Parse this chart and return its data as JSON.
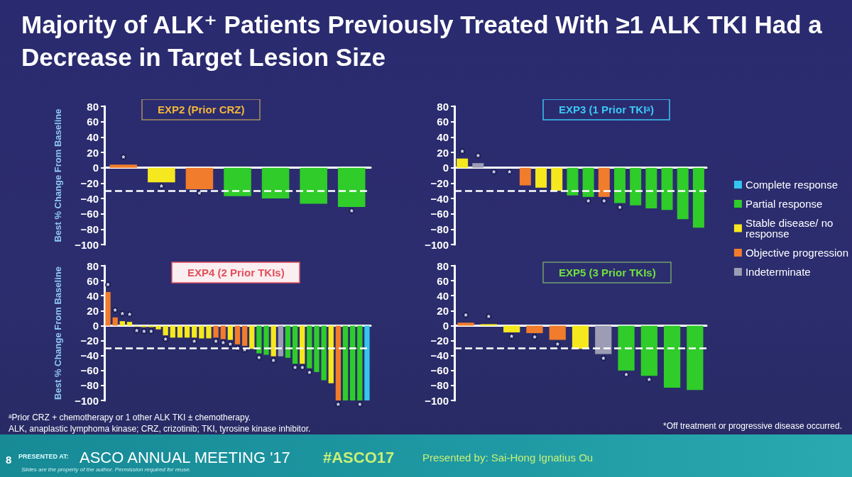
{
  "chart_data": [
    {
      "type": "bar",
      "title": "Majority of ALK⁺ Patients Previously Treated With ≥1 ALK TKI Had a Decrease in Target Lesion Size",
      "subtitle": "EXP2 (Prior CRZ)",
      "ylabel": "Best % Change From Baseline",
      "categories": [
        null,
        null,
        null,
        null,
        null,
        null,
        null
      ],
      "series": [
        {
          "color": "#2fcc2a",
          "values": [
            null,
            null,
            null,
            -37,
            -40,
            -47,
            -51
          ],
          "value_labels": [
            null,
            null,
            null,
            null,
            null,
            null,
            "*"
          ]
        },
        {
          "color": "#f5e81e",
          "values": [
            null,
            -19,
            null,
            null,
            null,
            null,
            null
          ],
          "value_labels": [
            null,
            "*",
            null,
            null,
            null,
            null,
            null
          ]
        },
        {
          "color": "#f07c2c",
          "values": [
            4,
            null,
            -28,
            null,
            null,
            null,
            null
          ],
          "value_labels": [
            "*",
            null,
            "*",
            null,
            null,
            null,
            null
          ]
        }
      ],
      "ylim": [
        -100,
        80
      ],
      "yticks": [
        -100,
        -80,
        -60,
        -40,
        -20,
        0,
        20,
        40,
        60,
        80
      ],
      "tick_labels": "y",
      "ref_lines": [
        {
          "axis": "y",
          "value": -30,
          "color": "#ffffff",
          "line_style": "dashed"
        }
      ]
    },
    {
      "type": "bar",
      "subtitle": "EXP3 (1 Prior TKIᵃ)",
      "categories": [
        null,
        null,
        null,
        null,
        null,
        null,
        null,
        null,
        null,
        null,
        null,
        null,
        null,
        null,
        null,
        null
      ],
      "series": [
        {
          "name": "Complete response",
          "color": "#35c5f0",
          "values": [
            null,
            null,
            null,
            null,
            null,
            null,
            null,
            null,
            null,
            null,
            null,
            null,
            null,
            null,
            null,
            null
          ]
        },
        {
          "name": "Partial response",
          "color": "#2fcc2a",
          "values": [
            null,
            null,
            null,
            null,
            null,
            null,
            null,
            -36,
            -38,
            null,
            -46,
            -49,
            -53,
            -55,
            -67,
            -78
          ],
          "value_labels": [
            null,
            null,
            null,
            null,
            null,
            null,
            null,
            null,
            "*",
            null,
            "*",
            null,
            null,
            null,
            null,
            null
          ]
        },
        {
          "name": "Stable disease/ no response",
          "color": "#f5e81e",
          "values": [
            12,
            null,
            0,
            0,
            null,
            -26,
            -30,
            null,
            null,
            null,
            null,
            null,
            null,
            null,
            null,
            null
          ],
          "value_labels": [
            "*",
            null,
            "*",
            "*",
            null,
            null,
            null,
            null,
            null,
            null,
            null,
            null,
            null,
            null,
            null,
            null
          ]
        },
        {
          "name": "Objective progression",
          "color": "#f07c2c",
          "values": [
            null,
            null,
            null,
            null,
            -23,
            null,
            null,
            null,
            null,
            -38,
            null,
            null,
            null,
            null,
            null,
            null
          ],
          "value_labels": [
            null,
            null,
            null,
            null,
            null,
            null,
            null,
            null,
            null,
            "*",
            null,
            null,
            null,
            null,
            null,
            null
          ]
        },
        {
          "name": "Indeterminate",
          "color": "#9c9cb4",
          "values": [
            null,
            6,
            null,
            null,
            null,
            null,
            null,
            null,
            null,
            null,
            null,
            null,
            null,
            null,
            null,
            null
          ],
          "value_labels": [
            null,
            "*",
            null,
            null,
            null,
            null,
            null,
            null,
            null,
            null,
            null,
            null,
            null,
            null,
            null,
            null
          ]
        }
      ],
      "ylim": [
        -100,
        80
      ],
      "yticks": [
        -100,
        -80,
        -60,
        -40,
        -20,
        0,
        20,
        40,
        60,
        80
      ],
      "tick_labels": "y",
      "legend": "right",
      "ref_lines": [
        {
          "axis": "y",
          "value": -30,
          "color": "#ffffff",
          "line_style": "dashed"
        }
      ]
    },
    {
      "type": "bar",
      "subtitle": "EXP4 (2 Prior TKIs)",
      "ylabel": "Best % Change From Baseline",
      "categories": [
        null,
        null,
        null,
        null,
        null,
        null,
        null,
        null,
        null,
        null,
        null,
        null,
        null,
        null,
        null,
        null,
        null,
        null,
        null,
        null,
        null,
        null,
        null,
        null,
        null,
        null,
        null,
        null,
        null,
        null,
        null,
        null,
        null,
        null,
        null,
        null,
        null
      ],
      "series": [
        {
          "color": "#f07c2c",
          "values": [
            45,
            11,
            null,
            null,
            null,
            null,
            null,
            null,
            null,
            null,
            null,
            null,
            null,
            null,
            null,
            -16,
            -18,
            null,
            -25,
            -27,
            null,
            null,
            null,
            null,
            null,
            null,
            null,
            null,
            null,
            null,
            null,
            null,
            -100,
            null,
            null,
            null,
            null
          ],
          "value_labels": [
            "*",
            "*",
            null,
            null,
            null,
            null,
            null,
            null,
            null,
            null,
            null,
            null,
            null,
            null,
            null,
            "*",
            "*",
            null,
            "*",
            "*",
            null,
            null,
            null,
            null,
            null,
            null,
            null,
            null,
            null,
            null,
            null,
            null,
            "*",
            null,
            null,
            null,
            null
          ]
        },
        {
          "color": "#f5e81e",
          "values": [
            null,
            null,
            6,
            5,
            -1,
            -2,
            -2,
            -5,
            -13,
            -16,
            -16,
            -16,
            -16,
            -17,
            -17,
            null,
            null,
            -19,
            null,
            null,
            -31,
            null,
            null,
            -41,
            null,
            null,
            null,
            -51,
            null,
            null,
            null,
            -77,
            null,
            null,
            null,
            null,
            null
          ],
          "value_labels": [
            null,
            null,
            "*",
            "*",
            "*",
            "*",
            "*",
            null,
            "*",
            null,
            null,
            null,
            "*",
            null,
            null,
            null,
            null,
            "*",
            null,
            null,
            null,
            null,
            null,
            "*",
            null,
            null,
            null,
            "*",
            null,
            null,
            null,
            null,
            null,
            null,
            null,
            null,
            null
          ]
        },
        {
          "color": "#2fcc2a",
          "values": [
            null,
            null,
            null,
            null,
            null,
            null,
            null,
            null,
            null,
            null,
            null,
            null,
            null,
            null,
            null,
            null,
            null,
            null,
            null,
            null,
            null,
            -37,
            -39,
            null,
            null,
            -43,
            -51,
            null,
            -57,
            -62,
            -73,
            null,
            null,
            -100,
            -100,
            -100,
            null
          ],
          "value_labels": [
            null,
            null,
            null,
            null,
            null,
            null,
            null,
            null,
            null,
            null,
            null,
            null,
            null,
            null,
            null,
            null,
            null,
            null,
            null,
            null,
            null,
            "*",
            null,
            null,
            null,
            null,
            "*",
            null,
            "*",
            null,
            null,
            null,
            null,
            null,
            null,
            "*",
            null
          ]
        },
        {
          "color": "#9c9cb4",
          "values": [
            null,
            null,
            null,
            null,
            null,
            null,
            null,
            null,
            null,
            null,
            null,
            null,
            null,
            null,
            null,
            null,
            null,
            null,
            null,
            null,
            null,
            null,
            null,
            null,
            -41,
            null,
            null,
            null,
            null,
            null,
            null,
            null,
            null,
            null,
            null,
            null,
            null
          ]
        },
        {
          "color": "#35c5f0",
          "values": [
            null,
            null,
            null,
            null,
            null,
            null,
            null,
            null,
            null,
            null,
            null,
            null,
            null,
            null,
            null,
            null,
            null,
            null,
            null,
            null,
            null,
            null,
            null,
            null,
            null,
            null,
            null,
            null,
            null,
            null,
            null,
            null,
            null,
            null,
            null,
            null,
            -100
          ]
        }
      ],
      "ylim": [
        -100,
        80
      ],
      "yticks": [
        -100,
        -80,
        -60,
        -40,
        -20,
        0,
        20,
        40,
        60,
        80
      ],
      "tick_labels": "y",
      "ref_lines": [
        {
          "axis": "y",
          "value": -30,
          "color": "#ffffff",
          "line_style": "dashed"
        }
      ],
      "annotations": [
        "ᵃPrior CRZ + chemotherapy or 1 other ALK TKI ± chemotherapy.",
        "ALK, anaplastic lymphoma kinase; CRZ, crizotinib; TKI, tyrosine kinase inhibitor."
      ]
    },
    {
      "type": "bar",
      "subtitle": "EXP5 (3 Prior TKIs)",
      "categories": [
        null,
        null,
        null,
        null,
        null,
        null,
        null,
        null,
        null,
        null,
        null
      ],
      "series": [
        {
          "color": "#2fcc2a",
          "values": [
            null,
            null,
            null,
            null,
            null,
            null,
            null,
            -60,
            -67,
            -83,
            -86
          ],
          "value_labels": [
            null,
            null,
            null,
            null,
            null,
            null,
            null,
            "*",
            "*",
            null,
            null
          ]
        },
        {
          "color": "#f5e81e",
          "values": [
            null,
            2,
            -9,
            null,
            null,
            -31,
            null,
            null,
            null,
            null,
            null
          ],
          "value_labels": [
            null,
            "*",
            "*",
            null,
            null,
            null,
            null,
            null,
            null,
            null,
            null
          ]
        },
        {
          "color": "#f07c2c",
          "values": [
            4,
            null,
            null,
            -10,
            -19,
            null,
            null,
            null,
            null,
            null,
            null
          ],
          "value_labels": [
            "*",
            null,
            null,
            "*",
            "*",
            null,
            null,
            null,
            null,
            null,
            null
          ]
        },
        {
          "color": "#9c9cb4",
          "values": [
            null,
            null,
            null,
            null,
            null,
            null,
            -38,
            null,
            null,
            null,
            null
          ],
          "value_labels": [
            null,
            null,
            null,
            null,
            null,
            null,
            "*",
            null,
            null,
            null,
            null
          ]
        }
      ],
      "ylim": [
        -100,
        80
      ],
      "yticks": [
        -100,
        -80,
        -60,
        -40,
        -20,
        0,
        20,
        40,
        60,
        80
      ],
      "tick_labels": "y",
      "ref_lines": [
        {
          "axis": "y",
          "value": -30,
          "color": "#ffffff",
          "line_style": "dashed"
        }
      ],
      "annotations": [
        "*Off treatment or progressive disease occurred.",
        "8",
        "PRESENTED AT:",
        "ASCO ANNUAL MEETING '17",
        "#ASCO17",
        "Presented by: Sai-Hong Ignatius Ou",
        "Slides are the property of the author. Permission required for reuse."
      ]
    }
  ]
}
